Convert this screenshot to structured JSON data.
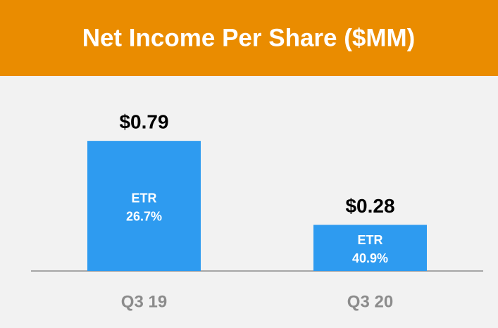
{
  "chart_data": {
    "type": "bar",
    "title": "Net Income Per Share ($MM)",
    "categories": [
      "Q3 19",
      "Q3 20"
    ],
    "values": [
      0.79,
      0.28
    ],
    "value_labels": [
      "$0.79",
      "$0.28"
    ],
    "color": "#2E9BF0",
    "inner_label": "ETR",
    "etr_values": [
      26.7,
      40.9
    ],
    "etr_labels": [
      "26.7%",
      "40.9%"
    ]
  }
}
